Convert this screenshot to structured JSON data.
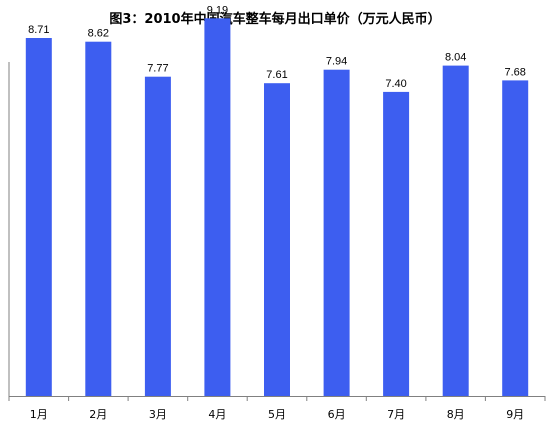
{
  "chart_data": {
    "type": "bar",
    "title": "图3：2010年中国汽车整车每月出口单价（万元人民币）",
    "categories": [
      "1月",
      "2月",
      "3月",
      "4月",
      "5月",
      "6月",
      "7月",
      "8月",
      "9月"
    ],
    "values": [
      8.71,
      8.62,
      7.77,
      9.19,
      7.61,
      7.94,
      7.4,
      8.04,
      7.68
    ],
    "value_labels": [
      "8.71",
      "8.62",
      "7.77",
      "9.19",
      "7.61",
      "7.94",
      "7.40",
      "8.04",
      "7.68"
    ],
    "xlabel": "",
    "ylabel": "",
    "ylim": [
      0,
      10
    ],
    "grid": false,
    "legend": "none",
    "bar_color": "#3d5ef0",
    "axis_color": "#808080"
  }
}
